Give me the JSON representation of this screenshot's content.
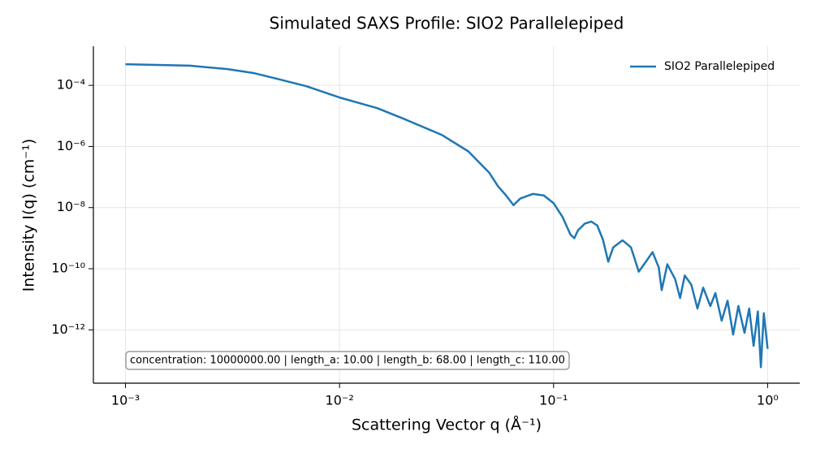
{
  "chart_data": {
    "type": "line",
    "title": "Simulated SAXS Profile: SIO2 Parallelepiped",
    "x_label": "Scattering Vector q (Å⁻¹)",
    "y_label": "Intensity I(q) (cm⁻¹)",
    "x_scale": "log",
    "y_scale": "log",
    "grid": true,
    "legend": "upper right",
    "annotation": "concentration: 10000000.00 | length_a: 10.00 | length_b: 68.00 | length_c: 110.00",
    "x": [
      0.001,
      0.002,
      0.003,
      0.004,
      0.005,
      0.007,
      0.01,
      0.015,
      0.02,
      0.03,
      0.04,
      0.05,
      0.055,
      0.06,
      0.065,
      0.07,
      0.08,
      0.09,
      0.1,
      0.11,
      0.12,
      0.125,
      0.13,
      0.14,
      0.15,
      0.16,
      0.17,
      0.18,
      0.19,
      0.21,
      0.23,
      0.25,
      0.27,
      0.29,
      0.31,
      0.32,
      0.34,
      0.37,
      0.39,
      0.41,
      0.44,
      0.47,
      0.5,
      0.54,
      0.57,
      0.61,
      0.65,
      0.69,
      0.73,
      0.78,
      0.82,
      0.86,
      0.9,
      0.93,
      0.96,
      1.0
    ],
    "series": [
      {
        "name": "SIO2 Parallelepiped",
        "color": "#1f77b4",
        "values": [
          0.00049,
          0.00044,
          0.00034,
          0.00025,
          0.00017,
          9.4e-05,
          4e-05,
          1.8e-05,
          8e-06,
          2.4e-06,
          6.9e-07,
          1.4e-07,
          5e-08,
          2.5e-08,
          1.2e-08,
          2e-08,
          2.8e-08,
          2.5e-08,
          1.4e-08,
          5e-09,
          1.3e-09,
          1e-09,
          1.8e-09,
          3e-09,
          3.5e-09,
          2.6e-09,
          9e-10,
          1.7e-10,
          5e-10,
          8.5e-10,
          5e-10,
          8e-11,
          1.7e-10,
          3.5e-10,
          1.1e-10,
          2e-11,
          1.4e-10,
          4.5e-11,
          1.1e-11,
          6e-11,
          3e-11,
          5e-12,
          2.4e-11,
          6e-12,
          1.6e-11,
          2e-12,
          9e-12,
          7e-13,
          6e-12,
          8e-13,
          5e-12,
          3e-13,
          4e-12,
          6e-14,
          3.5e-12,
          2.4e-13
        ]
      }
    ],
    "xlim": [
      0.000708,
      1.413
    ],
    "ylim": [
      1.8e-14,
      0.0019
    ],
    "xticks": [
      {
        "value": 0.001,
        "label": "10⁻³"
      },
      {
        "value": 0.01,
        "label": "10⁻²"
      },
      {
        "value": 0.1,
        "label": "10⁻¹"
      },
      {
        "value": 1,
        "label": "10⁰"
      }
    ],
    "yticks": [
      {
        "value": 1e-12,
        "label": "10⁻¹²"
      },
      {
        "value": 1e-10,
        "label": "10⁻¹⁰"
      },
      {
        "value": 1e-08,
        "label": "10⁻⁸"
      },
      {
        "value": 1e-06,
        "label": "10⁻⁶"
      },
      {
        "value": 0.0001,
        "label": "10⁻⁴"
      }
    ]
  }
}
